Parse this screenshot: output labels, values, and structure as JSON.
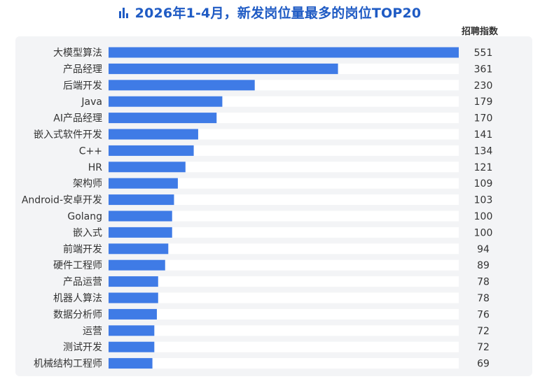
{
  "title": "2026年1-4月，新发岗位量最多的岗位TOP20",
  "value_header": "招聘指数",
  "colors": {
    "bar": "#3f7be6",
    "track": "#ffffff",
    "title": "#1f5bc4",
    "panel": "#f3f4f6"
  },
  "title_icon": "bar-chart-icon",
  "chart_data": {
    "type": "bar",
    "orientation": "horizontal",
    "title": "2026年1-4月，新发岗位量最多的岗位TOP20",
    "value_label": "招聘指数",
    "categories": [
      "大模型算法",
      "产品经理",
      "后端开发",
      "Java",
      "AI产品经理",
      "嵌入式软件开发",
      "C++",
      "HR",
      "架构师",
      "Android-安卓开发",
      "Golang",
      "嵌入式",
      "前端开发",
      "硬件工程师",
      "产品运营",
      "机器人算法",
      "数据分析师",
      "运营",
      "测试开发",
      "机械结构工程师"
    ],
    "values": [
      551,
      361,
      230,
      179,
      170,
      141,
      134,
      121,
      109,
      103,
      100,
      100,
      94,
      89,
      78,
      78,
      76,
      72,
      72,
      69
    ],
    "xlim": [
      0,
      551
    ],
    "grid": false,
    "legend": "none"
  }
}
